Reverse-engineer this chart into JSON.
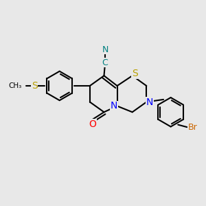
{
  "bg_color": "#e8e8e8",
  "bond_color": "#000000",
  "bond_width": 1.5,
  "S_color": "#b8a000",
  "N_color": "#0000ff",
  "O_color": "#ff0000",
  "Br_color": "#cc6600",
  "C_color": "#000000",
  "CN_color": "#008080",
  "figsize": [
    3.0,
    3.0
  ],
  "dpi": 100,
  "xlim": [
    0,
    10
  ],
  "ylim": [
    0,
    10
  ]
}
